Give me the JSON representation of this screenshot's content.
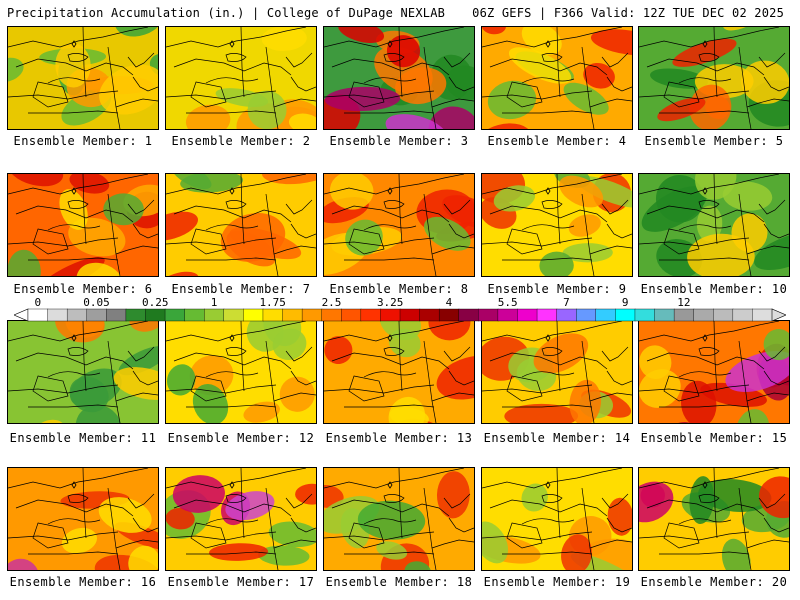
{
  "header": {
    "title_left": "Precipitation Accumulation (in.) | College of DuPage NEXLAB",
    "title_right": "06Z GEFS | F366 Valid: 12Z TUE DEC 02 2025"
  },
  "label_prefix": "Ensemble Member: ",
  "panels": [
    {
      "member": 1,
      "base": "#e8c800",
      "blobs": [
        [
          "#3aa63a",
          3
        ],
        [
          "#66bb33",
          3
        ],
        [
          "#ff9900",
          2
        ],
        [
          "#ffcc00",
          2
        ]
      ]
    },
    {
      "member": 2,
      "base": "#f0d800",
      "blobs": [
        [
          "#ff9900",
          4
        ],
        [
          "#99cc33",
          2
        ],
        [
          "#ffdd00",
          2
        ]
      ]
    },
    {
      "member": 3,
      "base": "#3e9a3e",
      "blobs": [
        [
          "#228822",
          3
        ],
        [
          "#ff7700",
          3
        ],
        [
          "#dd0000",
          3
        ],
        [
          "#aa0066",
          2
        ],
        [
          "#cc33cc",
          1
        ]
      ]
    },
    {
      "member": 4,
      "base": "#ffaa00",
      "blobs": [
        [
          "#ee2200",
          4
        ],
        [
          "#66bb33",
          3
        ],
        [
          "#ffdd00",
          2
        ]
      ]
    },
    {
      "member": 5,
      "base": "#55aa33",
      "blobs": [
        [
          "#228822",
          3
        ],
        [
          "#ffcc00",
          3
        ],
        [
          "#ff6600",
          2
        ],
        [
          "#ee2200",
          2
        ]
      ]
    },
    {
      "member": 6,
      "base": "#ff6600",
      "blobs": [
        [
          "#dd1100",
          4
        ],
        [
          "#ffaa00",
          3
        ],
        [
          "#55aa33",
          2
        ],
        [
          "#ffdd00",
          2
        ]
      ]
    },
    {
      "member": 7,
      "base": "#ffcc00",
      "blobs": [
        [
          "#ff6600",
          4
        ],
        [
          "#55aa33",
          2
        ],
        [
          "#ee2200",
          2
        ]
      ]
    },
    {
      "member": 8,
      "base": "#ff8800",
      "blobs": [
        [
          "#ee2200",
          4
        ],
        [
          "#ffcc00",
          3
        ],
        [
          "#66bb33",
          2
        ]
      ]
    },
    {
      "member": 9,
      "base": "#ffdd00",
      "blobs": [
        [
          "#ee3300",
          3
        ],
        [
          "#99cc33",
          3
        ],
        [
          "#55aa33",
          2
        ],
        [
          "#ff9900",
          2
        ]
      ]
    },
    {
      "member": 10,
      "base": "#55aa33",
      "blobs": [
        [
          "#228822",
          4
        ],
        [
          "#99cc33",
          3
        ],
        [
          "#ffcc00",
          2
        ]
      ]
    },
    {
      "member": 11,
      "base": "#88c433",
      "blobs": [
        [
          "#3a9a3a",
          4
        ],
        [
          "#ffcc00",
          3
        ],
        [
          "#ff7700",
          2
        ]
      ]
    },
    {
      "member": 12,
      "base": "#ffdd00",
      "blobs": [
        [
          "#99cc33",
          3
        ],
        [
          "#ff9900",
          3
        ],
        [
          "#44aa33",
          2
        ]
      ]
    },
    {
      "member": 13,
      "base": "#ffaa00",
      "blobs": [
        [
          "#ee2200",
          4
        ],
        [
          "#ffdd00",
          2
        ],
        [
          "#99cc33",
          2
        ]
      ]
    },
    {
      "member": 14,
      "base": "#ffcc00",
      "blobs": [
        [
          "#ee3300",
          3
        ],
        [
          "#99cc33",
          3
        ],
        [
          "#ff7700",
          2
        ]
      ]
    },
    {
      "member": 15,
      "base": "#ff7700",
      "blobs": [
        [
          "#dd1100",
          4
        ],
        [
          "#aa0033",
          2
        ],
        [
          "#cc33cc",
          1
        ],
        [
          "#66bb33",
          2
        ],
        [
          "#ffcc00",
          2
        ]
      ]
    },
    {
      "member": 16,
      "base": "#ff9900",
      "blobs": [
        [
          "#ee3300",
          3
        ],
        [
          "#ffdd00",
          3
        ],
        [
          "#cc3399",
          1
        ]
      ]
    },
    {
      "member": 17,
      "base": "#ffcc00",
      "blobs": [
        [
          "#66bb33",
          3
        ],
        [
          "#ee2200",
          3
        ],
        [
          "#cc0066",
          2
        ],
        [
          "#cc44cc",
          1
        ]
      ]
    },
    {
      "member": 18,
      "base": "#ffaa00",
      "blobs": [
        [
          "#ee3300",
          3
        ],
        [
          "#99cc33",
          3
        ],
        [
          "#44aa33",
          2
        ]
      ]
    },
    {
      "member": 19,
      "base": "#ffdd00",
      "blobs": [
        [
          "#ff9900",
          3
        ],
        [
          "#99cc33",
          3
        ],
        [
          "#ee3300",
          2
        ]
      ]
    },
    {
      "member": 20,
      "base": "#ffcc00",
      "blobs": [
        [
          "#55aa33",
          4
        ],
        [
          "#228822",
          2
        ],
        [
          "#ee2200",
          2
        ],
        [
          "#cc0066",
          1
        ]
      ]
    }
  ],
  "colorbar": {
    "tick_labels": [
      "0",
      "0.05",
      "0.25",
      "1",
      "1.75",
      "2.5",
      "3.25",
      "4",
      "5.5",
      "7",
      "9",
      "12"
    ],
    "colors": [
      "#ffffff",
      "#dcdcdc",
      "#bdbdbd",
      "#9e9e9e",
      "#808080",
      "#2e8b2e",
      "#1f7a1f",
      "#3aa63a",
      "#66bb33",
      "#99cc33",
      "#ccdd33",
      "#ffff00",
      "#ffdd00",
      "#ffbb00",
      "#ff9900",
      "#ff7700",
      "#ff5500",
      "#ff3300",
      "#ee1100",
      "#cc0000",
      "#aa0000",
      "#880000",
      "#880044",
      "#aa0066",
      "#cc0099",
      "#ee00cc",
      "#ff33ff",
      "#9966ff",
      "#6699ff",
      "#33ccff",
      "#00ffff",
      "#33dddd",
      "#66bbbb",
      "#999999",
      "#aaaaaa",
      "#bbbbbb",
      "#cccccc",
      "#dddddd"
    ]
  }
}
